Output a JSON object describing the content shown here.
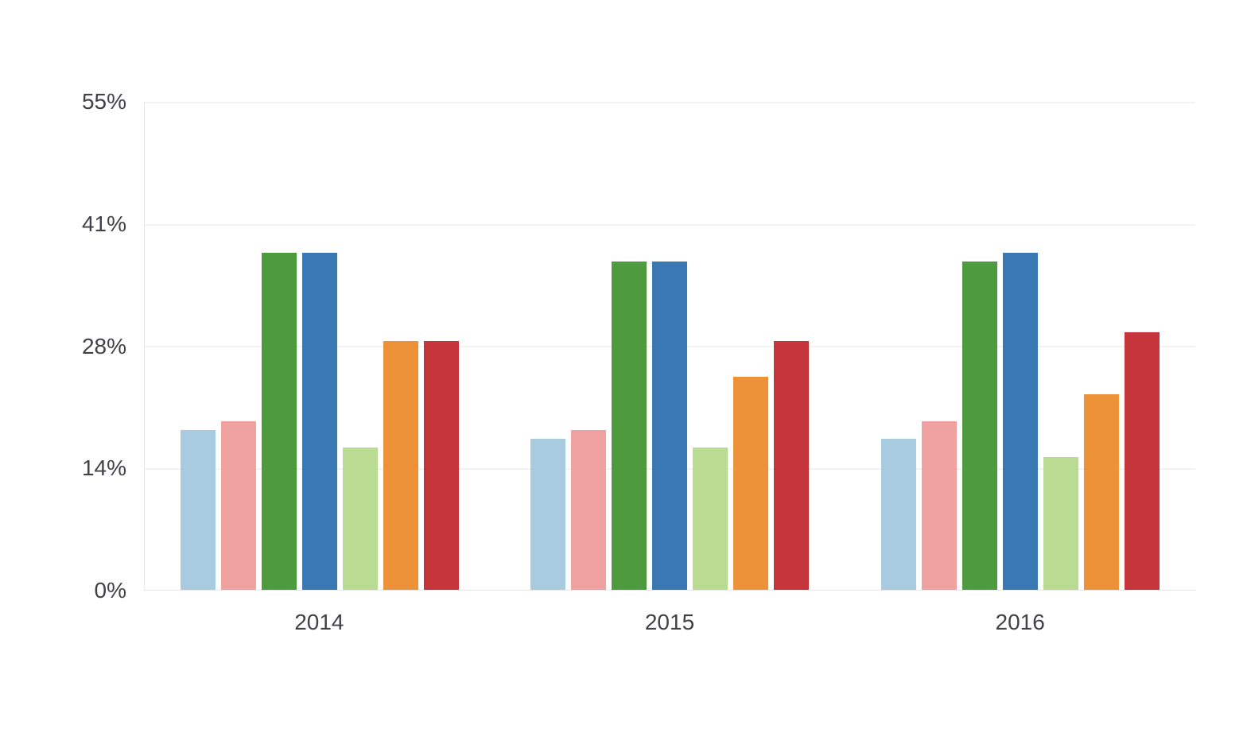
{
  "chart_data": {
    "type": "bar",
    "title": "",
    "xlabel": "",
    "ylabel": "",
    "categories": [
      "2014",
      "2015",
      "2016"
    ],
    "series": [
      {
        "name": "light-blue",
        "color": "#A9CBE0",
        "values": [
          18,
          17,
          17
        ]
      },
      {
        "name": "salmon-pink",
        "color": "#F0A2A0",
        "values": [
          19,
          18,
          19
        ]
      },
      {
        "name": "green",
        "color": "#4E9A3E",
        "values": [
          38,
          37,
          37
        ]
      },
      {
        "name": "blue",
        "color": "#3A78B3",
        "values": [
          38,
          37,
          38
        ]
      },
      {
        "name": "light-green",
        "color": "#B9DB92",
        "values": [
          16,
          16,
          15
        ]
      },
      {
        "name": "orange",
        "color": "#EE9239",
        "values": [
          28,
          24,
          22
        ]
      },
      {
        "name": "red",
        "color": "#C5353B",
        "values": [
          28,
          28,
          29
        ]
      }
    ],
    "ylim": [
      0,
      55
    ],
    "y_ticks": [
      "0%",
      "14%",
      "28%",
      "41%",
      "55%"
    ],
    "grid": true,
    "legend": false,
    "colors": {
      "gridline": "#e7e7e7",
      "axis_line": "#e7e7e7",
      "tick_label": "#414148",
      "background": "#ffffff"
    }
  }
}
